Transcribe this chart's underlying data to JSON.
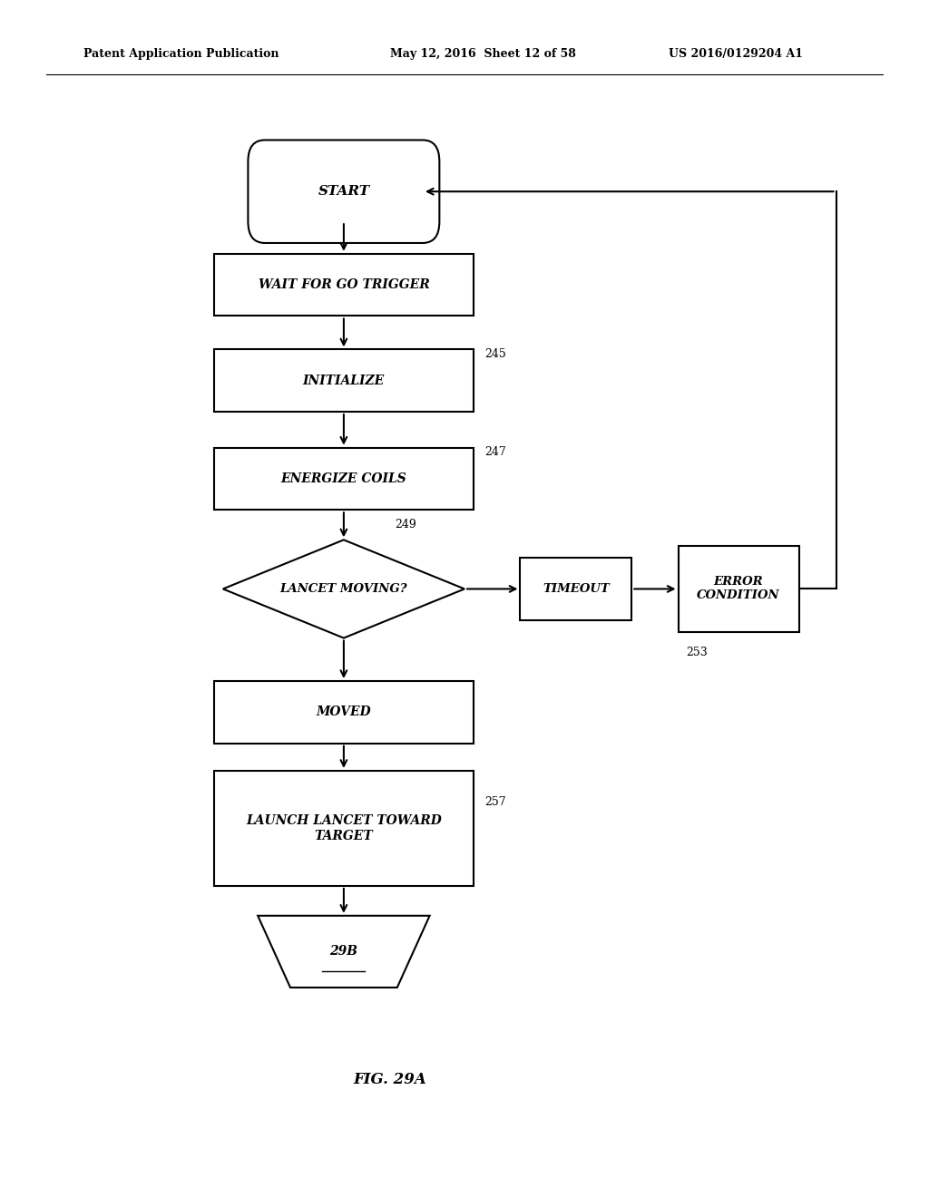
{
  "bg_color": "#ffffff",
  "header_left": "Patent Application Publication",
  "header_mid": "May 12, 2016  Sheet 12 of 58",
  "header_right": "US 2016/0129204 A1",
  "figure_label": "FIG. 29A"
}
